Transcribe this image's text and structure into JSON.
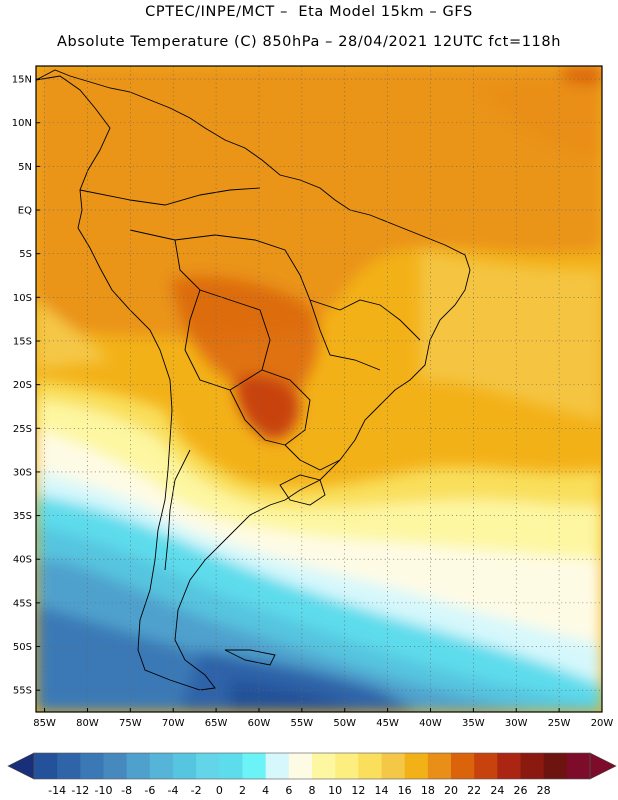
{
  "header": {
    "line1": "CPTEC/INPE/MCT –  Eta Model 15km – GFS",
    "line2": "Absolute Temperature (C) 850hPa – 28/04/2021 12UTC fct=118h"
  },
  "map": {
    "lat_labels": [
      "15N",
      "10N",
      "5N",
      "EQ",
      "5S",
      "10S",
      "15S",
      "20S",
      "25S",
      "30S",
      "35S",
      "40S",
      "45S",
      "50S",
      "55S"
    ],
    "lat_values": [
      15,
      10,
      5,
      0,
      -5,
      -10,
      -15,
      -20,
      -25,
      -30,
      -35,
      -40,
      -45,
      -50,
      -55
    ],
    "lon_labels": [
      "85W",
      "80W",
      "75W",
      "70W",
      "65W",
      "60W",
      "55W",
      "50W",
      "45W",
      "40W",
      "35W",
      "30W",
      "25W",
      "20W"
    ],
    "lon_values": [
      -85,
      -80,
      -75,
      -70,
      -65,
      -60,
      -55,
      -50,
      -45,
      -40,
      -35,
      -30,
      -25,
      -20
    ],
    "extent": {
      "lon_min": -86,
      "lon_max": -20,
      "lat_min": -57.5,
      "lat_max": 16.5
    }
  },
  "colorbar": {
    "labels": [
      "-14",
      "-12",
      "-10",
      "-8",
      "-6",
      "-4",
      "-2",
      "0",
      "2",
      "4",
      "6",
      "8",
      "10",
      "12",
      "14",
      "16",
      "18",
      "20",
      "22",
      "24",
      "26",
      "28"
    ],
    "colors": [
      "#23519a",
      "#2f64a9",
      "#3b79b6",
      "#4589bf",
      "#4fa1cd",
      "#56b4d8",
      "#56c5df",
      "#62d5e8",
      "#5ddcec",
      "#6bf3f8",
      "#d6f8fc",
      "#fefbe5",
      "#fdf7a2",
      "#fcef80",
      "#f9df5c",
      "#f5c746",
      "#f3b118",
      "#e98e17",
      "#db630b",
      "#c8420e",
      "#aa2612",
      "#8a1a0f",
      "#6e1410",
      "#7c0c2a"
    ],
    "arrow_left_color": "#1a2f7a",
    "arrow_right_color": "#7c0c2a"
  }
}
